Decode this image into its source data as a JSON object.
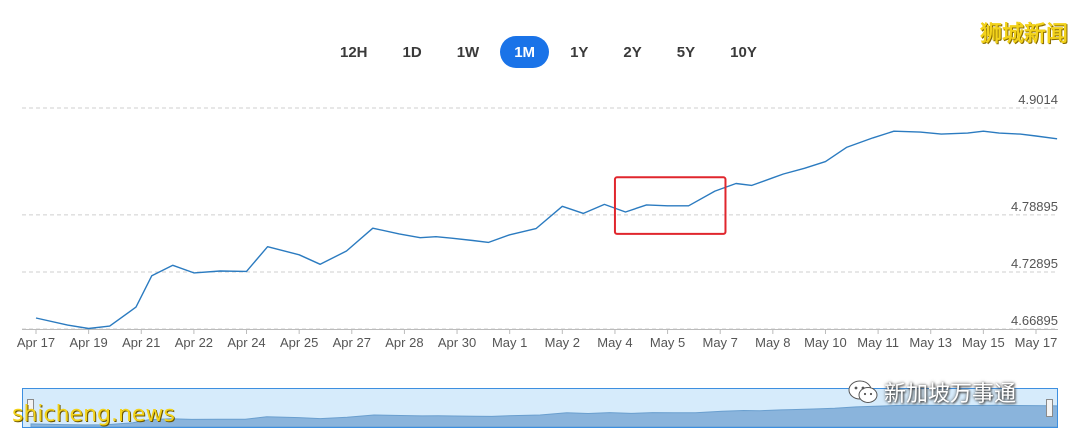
{
  "range_buttons": [
    "12H",
    "1D",
    "1W",
    "1M",
    "1Y",
    "2Y",
    "5Y",
    "10Y"
  ],
  "active_range": "1M",
  "watermarks": {
    "top_right": "狮城新闻",
    "wechat": "新加坡万事通",
    "bottom_left": "shicheng.news"
  },
  "colors": {
    "line": "#2b7bc0",
    "active_button": "#1a73e8",
    "highlight_box": "#e0262d",
    "navigator_fill": "#8ab4dc",
    "watermark": "#f2d21b"
  },
  "chart_data": {
    "type": "line",
    "title": "",
    "xlabel": "",
    "ylabel": "",
    "x_ticks": [
      "Apr 17",
      "Apr 19",
      "Apr 21",
      "Apr 22",
      "Apr 24",
      "Apr 25",
      "Apr 27",
      "Apr 28",
      "Apr 30",
      "May 1",
      "May 2",
      "May 4",
      "May 5",
      "May 7",
      "May 8",
      "May 10",
      "May 11",
      "May 13",
      "May 15",
      "May 17"
    ],
    "y_ticks": [
      4.9014,
      4.78895,
      4.72895,
      4.66895
    ],
    "y_tick_labels": [
      "4.9014",
      "4.78895",
      "4.72895",
      "4.66895"
    ],
    "ylim": [
      4.66895,
      4.9014
    ],
    "grid": "horizontal dashed",
    "series": [
      {
        "x": [
          0,
          0.6,
          1.0,
          1.4,
          1.9,
          2.2,
          2.6,
          3.0,
          3.5,
          4.0,
          4.4,
          5.0,
          5.4,
          5.9,
          6.4,
          6.9,
          7.3,
          7.6,
          7.9,
          8.3,
          8.6,
          9.0,
          9.5,
          10.0,
          10.4,
          10.8,
          11.2,
          11.6,
          12.0,
          12.4,
          12.9,
          13.3,
          13.6,
          14.0,
          14.2,
          14.6,
          15.0,
          15.4,
          15.9,
          16.3,
          16.8,
          17.2,
          17.7,
          18.0,
          18.3,
          18.7,
          19.0,
          19.4
        ],
        "y": [
          4.6805,
          4.673,
          4.6695,
          4.672,
          4.692,
          4.725,
          4.736,
          4.728,
          4.73,
          4.7295,
          4.7555,
          4.747,
          4.737,
          4.751,
          4.775,
          4.769,
          4.765,
          4.766,
          4.7645,
          4.762,
          4.76,
          4.768,
          4.7745,
          4.798,
          4.7905,
          4.8,
          4.792,
          4.7995,
          4.7985,
          4.7985,
          4.814,
          4.822,
          4.82,
          4.828,
          4.832,
          4.838,
          4.845,
          4.86,
          4.87,
          4.877,
          4.876,
          4.874,
          4.875,
          4.877,
          4.875,
          4.874,
          4.872,
          4.869
        ]
      }
    ],
    "annotation": {
      "type": "rectangle",
      "x_range": [
        11.0,
        13.1
      ],
      "y_range": [
        4.769,
        4.8285
      ]
    }
  }
}
